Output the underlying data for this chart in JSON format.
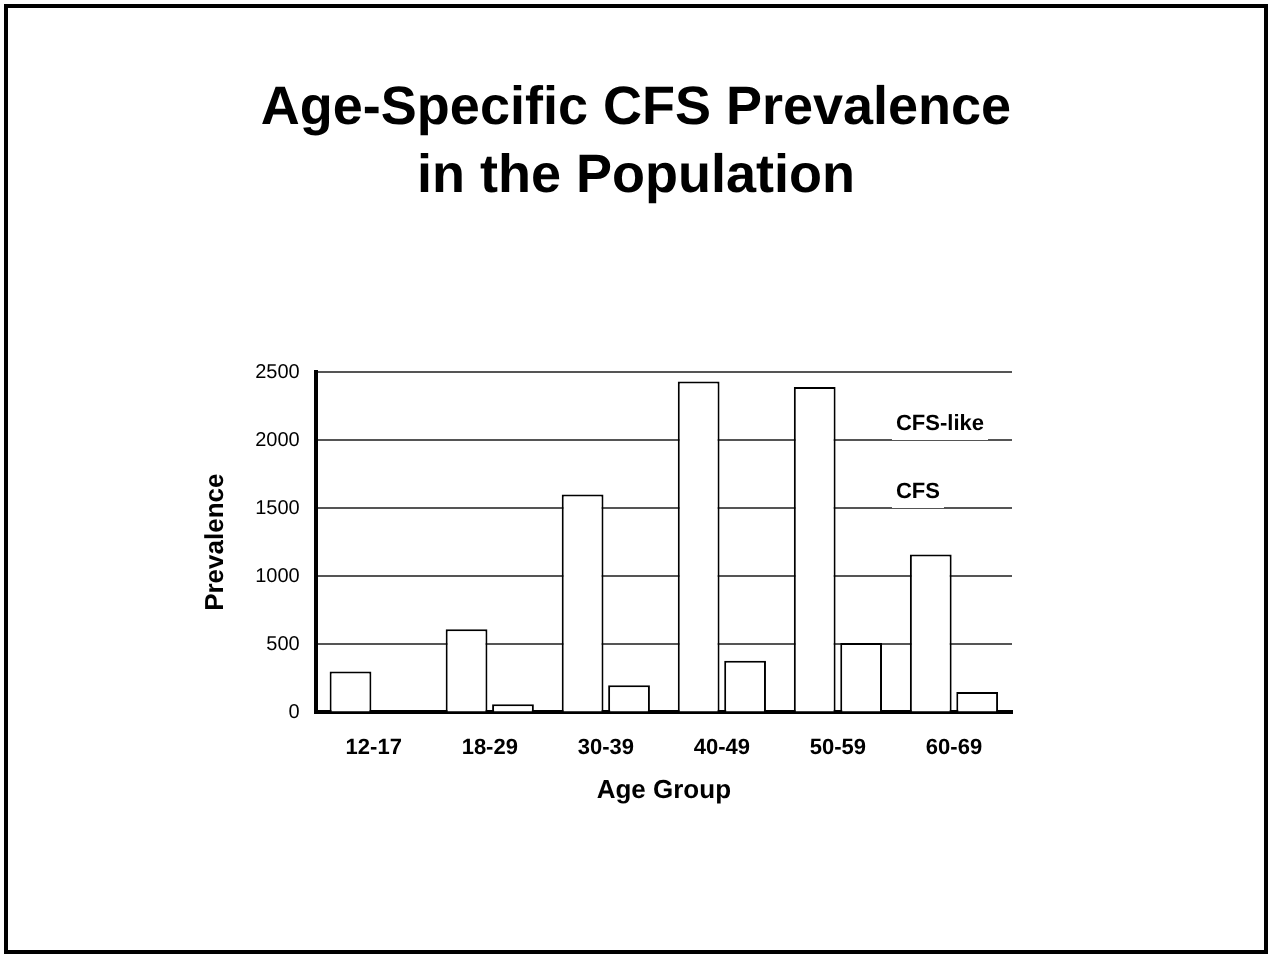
{
  "chart_data": {
    "type": "bar",
    "title": "Age-Specific CFS Prevalence in the Population",
    "xlabel": "Age Group",
    "ylabel": "Prevalence",
    "categories": [
      "12-17",
      "18-29",
      "30-39",
      "40-49",
      "50-59",
      "60-69"
    ],
    "series": [
      {
        "name": "CFS-like",
        "color": "#ffffff",
        "values": [
          300,
          610,
          1600,
          2430,
          2390,
          1160
        ]
      },
      {
        "name": "CFS",
        "color": "#ffffff",
        "values": [
          0,
          60,
          200,
          380,
          510,
          150
        ]
      }
    ],
    "ylim": [
      0,
      2500
    ],
    "yticks": [
      0,
      500,
      1000,
      1500,
      2000,
      2500
    ],
    "grid": "y",
    "legend": "top right"
  }
}
